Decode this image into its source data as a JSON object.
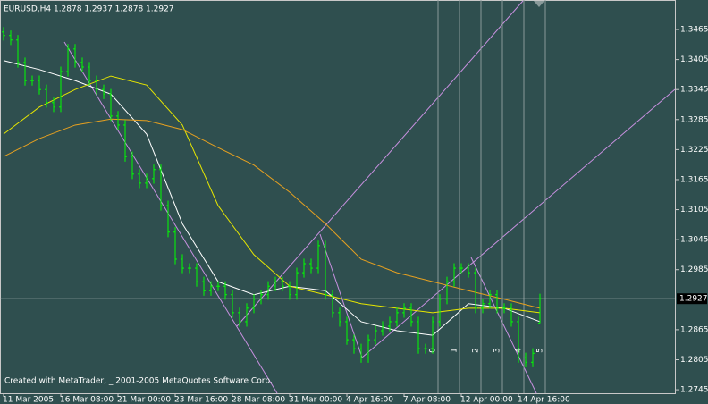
{
  "chart_data": {
    "type": "ohlc",
    "title": "EURUSD,H4  1.2878 1.2937 1.2878 1.2927",
    "watermark": "Created with MetaTrader, _ 2001-2005 MetaQuotes Software Corp.",
    "categories": [
      "11 Mar 2005",
      null,
      null,
      null,
      null,
      null,
      null,
      null,
      "16 Mar 08:00",
      null,
      null,
      null,
      null,
      null,
      null,
      null,
      "21 Mar 00:00",
      null,
      null,
      null,
      null,
      null,
      null,
      null,
      "23 Mar 16:00",
      null,
      null,
      null,
      null,
      null,
      null,
      null,
      "28 Mar 08:00",
      null,
      null,
      null,
      null,
      null,
      null,
      null,
      "31 Mar 00:00",
      null,
      null,
      null,
      null,
      null,
      null,
      null,
      "4 Apr 16:00",
      null,
      null,
      null,
      null,
      null,
      null,
      null,
      "7 Apr 08:00",
      null,
      null,
      null,
      null,
      null,
      null,
      null,
      "12 Apr 00:00",
      null,
      null,
      null,
      null,
      null,
      null,
      null,
      "14 Apr 16:00",
      null,
      null,
      null
    ],
    "open": [
      1.346,
      1.3453,
      1.3444,
      1.3399,
      1.3363,
      1.3363,
      1.3345,
      1.3319,
      1.331,
      1.3381,
      1.3426,
      1.3399,
      1.339,
      1.3363,
      1.3345,
      1.3336,
      1.3292,
      1.3274,
      1.3211,
      1.3176,
      1.3158,
      1.3167,
      1.3185,
      1.3113,
      1.306,
      1.3006,
      1.2988,
      1.2988,
      1.2961,
      1.2943,
      1.2952,
      1.2952,
      1.2935,
      1.2899,
      1.2881,
      1.2908,
      1.2926,
      1.2935,
      1.2952,
      1.2961,
      1.2952,
      1.2935,
      1.2979,
      1.2997,
      1.2988,
      1.3033,
      1.2935,
      1.2899,
      1.2881,
      1.2845,
      1.2827,
      1.2809,
      1.2845,
      1.2863,
      1.2872,
      1.2881,
      1.2899,
      1.2908,
      1.2881,
      1.2827,
      1.2827,
      1.2881,
      1.2926,
      1.2961,
      1.2988,
      1.2988,
      1.2979,
      1.2908,
      1.2917,
      1.2935,
      1.2908,
      1.2908,
      1.2881,
      1.2809,
      1.28,
      1.2878
    ],
    "high": [
      1.347,
      1.3463,
      1.3454,
      1.3409,
      1.3373,
      1.3373,
      1.3355,
      1.3329,
      1.3391,
      1.3436,
      1.3436,
      1.3409,
      1.34,
      1.3373,
      1.3355,
      1.3346,
      1.3302,
      1.3284,
      1.3221,
      1.3186,
      1.3177,
      1.3195,
      1.3195,
      1.3123,
      1.307,
      1.3016,
      1.2998,
      1.2998,
      1.2971,
      1.2962,
      1.2962,
      1.2962,
      1.2945,
      1.2909,
      1.2918,
      1.2936,
      1.2945,
      1.2962,
      1.2971,
      1.2971,
      1.2962,
      1.2989,
      1.3007,
      1.3007,
      1.3043,
      1.3043,
      1.2945,
      1.2909,
      1.2891,
      1.2855,
      1.2837,
      1.2855,
      1.2873,
      1.2882,
      1.2891,
      1.2909,
      1.2918,
      1.2918,
      1.2891,
      1.2837,
      1.2891,
      1.2936,
      1.2971,
      1.2998,
      1.2998,
      1.2998,
      1.2989,
      1.2927,
      1.2945,
      1.2945,
      1.2918,
      1.2918,
      1.2891,
      1.2819,
      1.2828,
      1.2937
    ],
    "low": [
      1.3443,
      1.3434,
      1.3389,
      1.3353,
      1.3353,
      1.3335,
      1.3309,
      1.33,
      1.33,
      1.3371,
      1.3389,
      1.338,
      1.3353,
      1.3335,
      1.3326,
      1.3282,
      1.3264,
      1.3201,
      1.3166,
      1.3148,
      1.3148,
      1.3157,
      1.3103,
      1.305,
      1.2996,
      1.2978,
      1.2978,
      1.2951,
      1.2933,
      1.2933,
      1.2942,
      1.2925,
      1.2889,
      1.2871,
      1.2871,
      1.2898,
      1.2916,
      1.2925,
      1.2942,
      1.2942,
      1.2925,
      1.2925,
      1.2969,
      1.2978,
      1.2978,
      1.2925,
      1.2889,
      1.2871,
      1.2835,
      1.2817,
      1.2799,
      1.2799,
      1.2835,
      1.2853,
      1.2862,
      1.2871,
      1.2889,
      1.2871,
      1.2817,
      1.2817,
      1.2817,
      1.2871,
      1.2916,
      1.2951,
      1.2978,
      1.2969,
      1.2898,
      1.2898,
      1.2907,
      1.2898,
      1.2898,
      1.2871,
      1.2799,
      1.279,
      1.279,
      1.2878
    ],
    "close": [
      1.3453,
      1.3444,
      1.3399,
      1.3363,
      1.3363,
      1.3345,
      1.3319,
      1.331,
      1.3381,
      1.3426,
      1.3399,
      1.339,
      1.3363,
      1.3345,
      1.3336,
      1.3292,
      1.3274,
      1.3211,
      1.3176,
      1.3158,
      1.3167,
      1.3185,
      1.3113,
      1.306,
      1.3006,
      1.2988,
      1.2988,
      1.2961,
      1.2943,
      1.2952,
      1.2952,
      1.2935,
      1.2899,
      1.2881,
      1.2908,
      1.2926,
      1.2935,
      1.2952,
      1.2961,
      1.2952,
      1.2935,
      1.2979,
      1.2997,
      1.2988,
      1.3033,
      1.2935,
      1.2899,
      1.2881,
      1.2845,
      1.2827,
      1.2809,
      1.2845,
      1.2863,
      1.2872,
      1.2881,
      1.2899,
      1.2908,
      1.2881,
      1.2827,
      1.2827,
      1.2881,
      1.2926,
      1.2961,
      1.2988,
      1.2988,
      1.2979,
      1.2908,
      1.2917,
      1.2935,
      1.2908,
      1.2908,
      1.2881,
      1.2809,
      1.28,
      1.2818,
      1.2927
    ],
    "color": "#00ff00",
    "overlays": [
      {
        "color": "#ffffff",
        "x": [
          0,
          5,
          10,
          15,
          20,
          25,
          30,
          35,
          40,
          45,
          50,
          55,
          60,
          65,
          70,
          75
        ],
        "values": [
          1.3403,
          1.3385,
          1.3363,
          1.3336,
          1.3256,
          1.3077,
          1.2961,
          1.2935,
          1.2952,
          1.2943,
          1.2881,
          1.2863,
          1.2854,
          1.2917,
          1.2908,
          1.2881
        ]
      },
      {
        "color": "#e6e600",
        "x": [
          0,
          5,
          10,
          15,
          20,
          25,
          30,
          35,
          40,
          45,
          50,
          55,
          60,
          65,
          70,
          75
        ],
        "values": [
          1.3256,
          1.331,
          1.3345,
          1.3372,
          1.3354,
          1.3274,
          1.3113,
          1.3015,
          1.2952,
          1.2935,
          1.2917,
          1.2908,
          1.2899,
          1.2908,
          1.2908,
          1.2899
        ]
      },
      {
        "color": "#e6a020",
        "x": [
          0,
          5,
          10,
          15,
          20,
          25,
          30,
          35,
          40,
          45,
          50,
          55,
          60,
          65,
          70,
          75
        ],
        "values": [
          1.3211,
          1.3247,
          1.3274,
          1.3286,
          1.3283,
          1.3265,
          1.3229,
          1.3194,
          1.314,
          1.3077,
          1.3006,
          1.2979,
          1.2961,
          1.2943,
          1.2926,
          1.2908
        ]
      }
    ],
    "ylim": [
      1.2738,
      1.3524
    ],
    "yticks": [
      1.3465,
      1.3405,
      1.3345,
      1.3285,
      1.3225,
      1.3165,
      1.3105,
      1.3045,
      1.2985,
      1.2865,
      1.2805,
      1.2745
    ],
    "bid": 1.2927,
    "fibo_time_labels": [
      "0",
      "1",
      "2",
      "3",
      "4",
      "5"
    ]
  }
}
